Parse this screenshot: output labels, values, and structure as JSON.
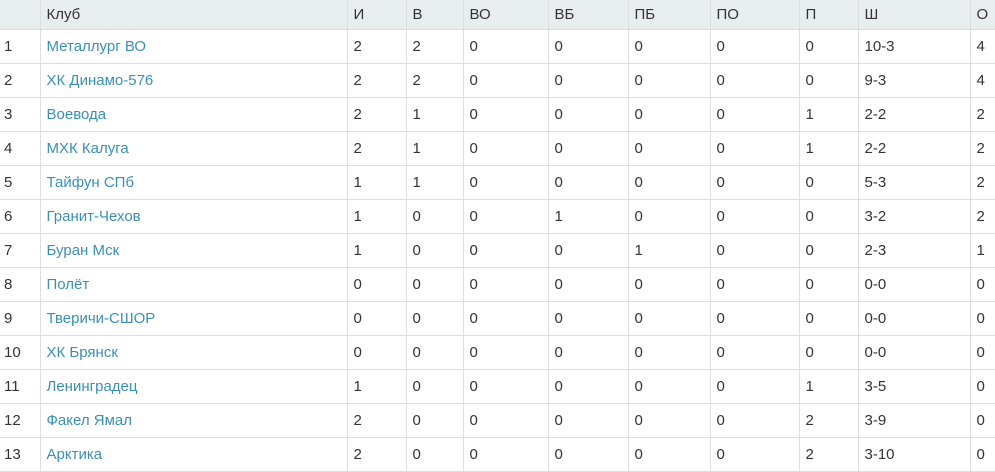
{
  "headers": [
    "",
    "Клуб",
    "И",
    "В",
    "ВО",
    "ВБ",
    "ПБ",
    "ПО",
    "П",
    "Ш",
    "О"
  ],
  "link_color": "#3a8fb7",
  "rows": [
    [
      "1",
      "Металлург ВО",
      "2",
      "2",
      "0",
      "0",
      "0",
      "0",
      "0",
      "10-3",
      "4"
    ],
    [
      "2",
      "ХК Динамо-576",
      "2",
      "2",
      "0",
      "0",
      "0",
      "0",
      "0",
      "9-3",
      "4"
    ],
    [
      "3",
      "Воевода",
      "2",
      "1",
      "0",
      "0",
      "0",
      "0",
      "1",
      "2-2",
      "2"
    ],
    [
      "4",
      "МХК Калуга",
      "2",
      "1",
      "0",
      "0",
      "0",
      "0",
      "1",
      "2-2",
      "2"
    ],
    [
      "5",
      "Тайфун СПб",
      "1",
      "1",
      "0",
      "0",
      "0",
      "0",
      "0",
      "5-3",
      "2"
    ],
    [
      "6",
      "Гранит-Чехов",
      "1",
      "0",
      "0",
      "1",
      "0",
      "0",
      "0",
      "3-2",
      "2"
    ],
    [
      "7",
      "Буран Мск",
      "1",
      "0",
      "0",
      "0",
      "1",
      "0",
      "0",
      "2-3",
      "1"
    ],
    [
      "8",
      "Полёт",
      "0",
      "0",
      "0",
      "0",
      "0",
      "0",
      "0",
      "0-0",
      "0"
    ],
    [
      "9",
      "Тверичи-СШОР",
      "0",
      "0",
      "0",
      "0",
      "0",
      "0",
      "0",
      "0-0",
      "0"
    ],
    [
      "10",
      "ХК Брянск",
      "0",
      "0",
      "0",
      "0",
      "0",
      "0",
      "0",
      "0-0",
      "0"
    ],
    [
      "11",
      "Ленинградец",
      "1",
      "0",
      "0",
      "0",
      "0",
      "0",
      "1",
      "3-5",
      "0"
    ],
    [
      "12",
      "Факел Ямал",
      "2",
      "0",
      "0",
      "0",
      "0",
      "0",
      "2",
      "3-9",
      "0"
    ],
    [
      "13",
      "Арктика",
      "2",
      "0",
      "0",
      "0",
      "0",
      "0",
      "2",
      "3-10",
      "0"
    ]
  ]
}
